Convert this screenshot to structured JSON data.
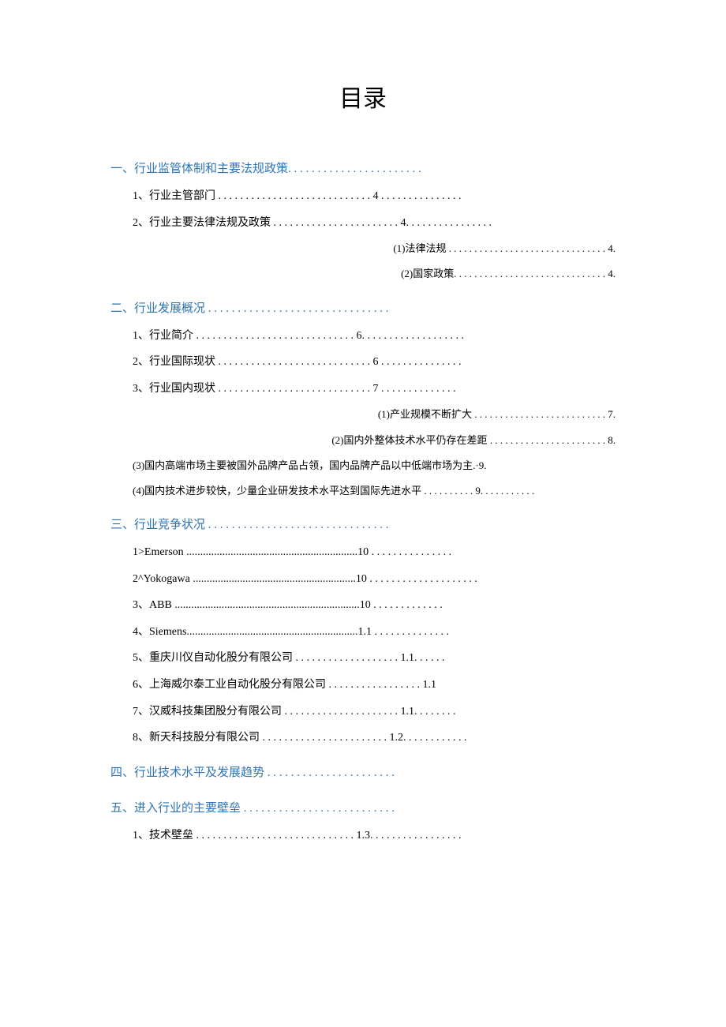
{
  "title": "目录",
  "colors": {
    "heading": "#2e74b5",
    "text": "#000000",
    "background": "#ffffff"
  },
  "typography": {
    "title_fontsize": 30,
    "heading_fontsize": 15,
    "l2_fontsize": 14,
    "l3_fontsize": 13,
    "font_family": "SimSun"
  },
  "toc": [
    {
      "type": "section",
      "text": "一、行业监管体制和主要法规政策. . . . . . . . . . . . . . . . . . . . . . ."
    },
    {
      "type": "l2",
      "text": "1、行业主管部门 . . . . . . . . . . . . . . . . . . . . . . . . . . . . 4 . . . . . . . . . . . . . . ."
    },
    {
      "type": "l2",
      "text": "2、行业主要法律法规及政策 . . . . . . . . . . . . . . . . . . . . . . . 4. . . . . . . . . . . . . . . ."
    },
    {
      "type": "l3",
      "text": "(1)法律法规 . . . . . . . . . . . . . . . . . . . . . . . . . . . . . . . 4."
    },
    {
      "type": "l3",
      "text": "(2)国家政策. . . . . . . . . . . . . . . . . . . . . . . . . . . . . . 4."
    },
    {
      "type": "section",
      "text": "二、行业发展概况 . . . . . . . . . . . . . . . . . . . . . . . . . . . . . . ."
    },
    {
      "type": "l2",
      "text": "1、行业简介 . . . . . . . . . . . . . . . . . . . . . . . . . . . . . 6. . . . . . . . . . . . . . . . . . ."
    },
    {
      "type": "l2",
      "text": "2、行业国际现状 . . . . . . . . . . . . . . . . . . . . . . . . . . . . 6 . . . . . . . . . . . . . . ."
    },
    {
      "type": "l2",
      "text": "3、行业国内现状 . . . . . . . . . . . . . . . . . . . . . . . . . . . . 7 . . . . . . . . . . . . . ."
    },
    {
      "type": "l3",
      "text": "(1)产业规模不断扩大 . . . . . . . . . . . . . . . . . . . . . . . . . . 7."
    },
    {
      "type": "l3",
      "text": "(2)国内外整体技术水平仍存在差距 . . . . . . . . . . . . . . . . . . . . . . . 8."
    },
    {
      "type": "l3-left",
      "text": "(3)国内高端市场主要被国外品牌产品占领，国内品牌产品以中低端市场为主.·9."
    },
    {
      "type": "l3-left",
      "text": "(4)国内技术进步较快，少量企业研发技术水平达到国际先进水平 . . . . . . . . . . 9. . . . . . . . . . ."
    },
    {
      "type": "section",
      "text": "三、行业竞争状况 . . . . . . . . . . . . . . . . . . . . . . . . . . . . . . ."
    },
    {
      "type": "l2",
      "text": "1>Emerson ..............................................................10 . . . . . . . . . . . . . . ."
    },
    {
      "type": "l2",
      "text": "2^Yokogawa ...........................................................10 . . . . . . . . . . . . . . . . . . . ."
    },
    {
      "type": "l2",
      "text": "3、ABB ...................................................................10 . . . . . . . . . . . . ."
    },
    {
      "type": "l2",
      "text": "4、Siemens..............................................................1.1 . . . . . . . . . . . . . ."
    },
    {
      "type": "l2",
      "text": "5、重庆川仪自动化股分有限公司 . . . . . . . . . . . . . . . . . . . 1.1. . . . . ."
    },
    {
      "type": "l2",
      "text": "6、上海威尔泰工业自动化股分有限公司 . . . . . . . . . . . . . . . . . 1.1"
    },
    {
      "type": "l2",
      "text": "7、汉威科技集团股分有限公司 . . . . . . . . . . . . . . . . . . . . . 1.1. . . . . . . ."
    },
    {
      "type": "l2",
      "text": "8、新天科技股分有限公司 . . . . . . . . . . . . . . . . . . . . . . . 1.2. . . . . . . . . . . ."
    },
    {
      "type": "section",
      "text": "四、行业技术水平及发展趋势 . . . . . . . . . . . . . . . . . . . . . ."
    },
    {
      "type": "section",
      "text": "五、进入行业的主要壁垒 . . . . . . . . . . . . . . . . . . . . . . . . . ."
    },
    {
      "type": "l2",
      "text": "1、技术壁垒 . . . . . . . . . . . . . . . . . . . . . . . . . . . . . 1.3. . . . . . . . . . . . . . . . ."
    }
  ]
}
